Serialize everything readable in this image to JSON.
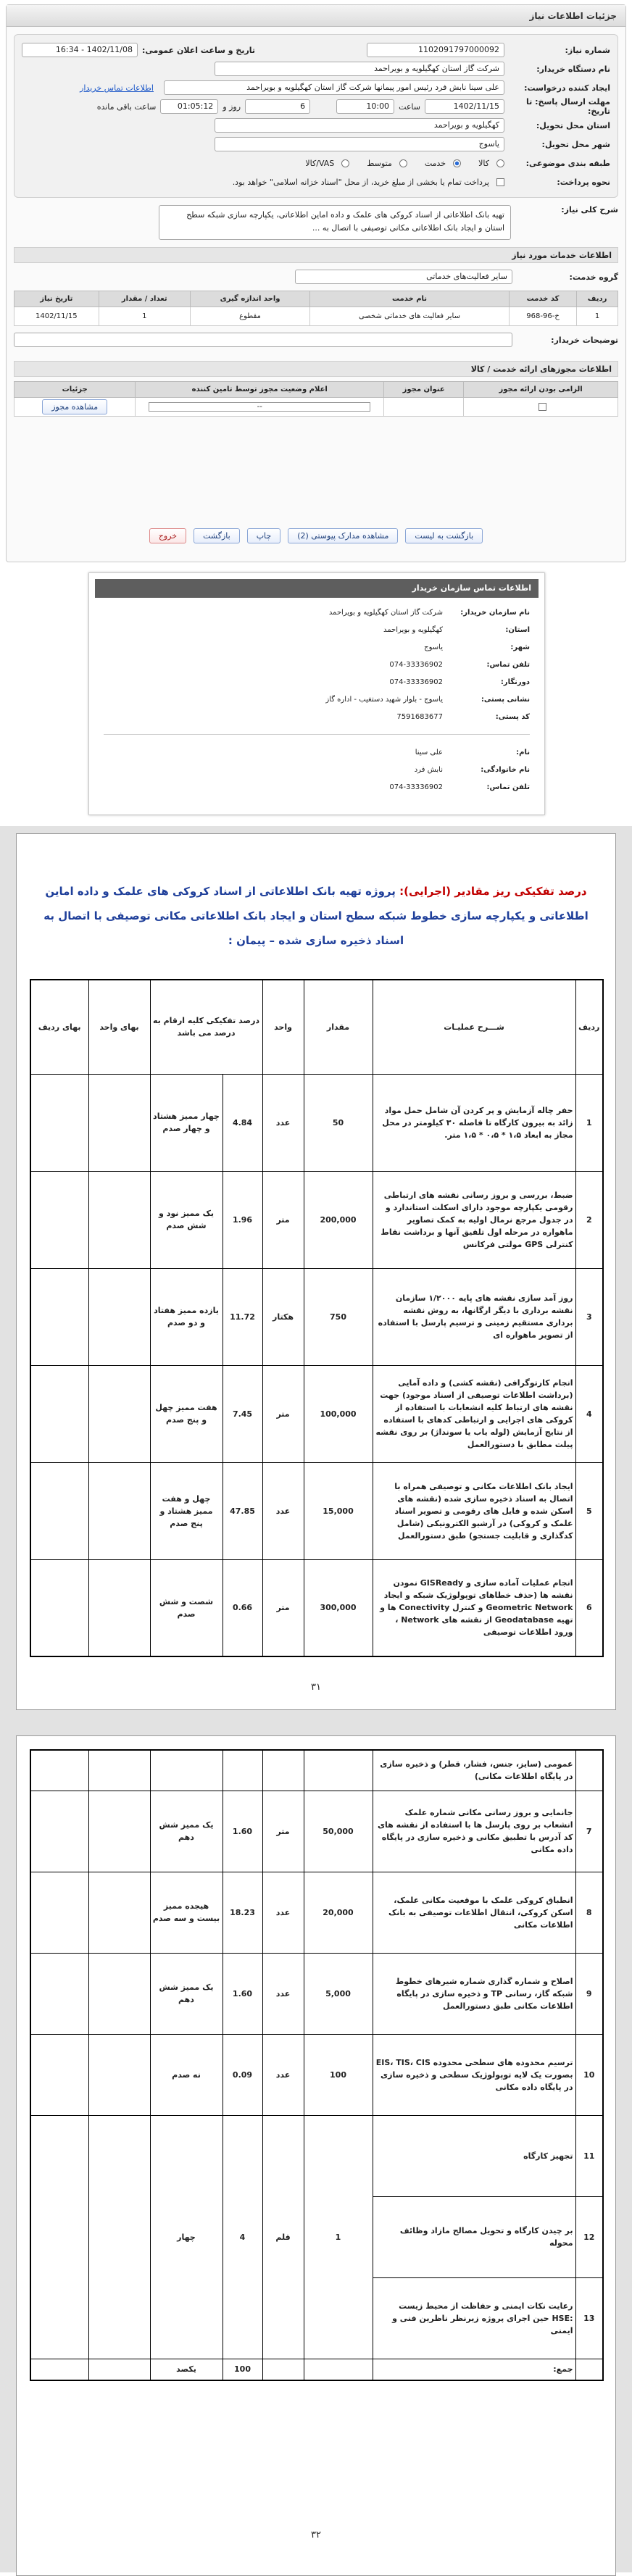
{
  "header": {
    "title": "جزئیات اطلاعات نیاز"
  },
  "form": {
    "need_number": {
      "label": "شماره نیاز:",
      "value": "1102091797000092"
    },
    "announce": {
      "label": "تاریخ و ساعت اعلان عمومی:",
      "value": "1402/11/08 - 16:34"
    },
    "buyer": {
      "label": "نام دستگاه خریدار:",
      "value": "شرکت گاز استان کهگیلویه و بویراحمد"
    },
    "creator": {
      "label": "ایجاد کننده درخواست:",
      "value": "علی سینا نابش فرد رئیس امور پیمانها شرکت گاز استان کهگیلویه و بویراحمد",
      "link": "اطلاعات تماس خریدار"
    },
    "deadline": {
      "label": "مهلت ارسال پاسخ: تا تاریخ:",
      "date": "1402/11/15",
      "time_label": "ساعت",
      "time": "10:00",
      "days": "6",
      "days_label": "روز و",
      "remaining": "01:05:12",
      "remaining_label": "ساعت باقی مانده"
    },
    "delivery": {
      "label": "استان محل تحویل:",
      "value": "کهگیلویه و بویراحمد"
    },
    "city": {
      "label": "شهر محل تحویل:",
      "value": "یاسوج"
    },
    "category": {
      "label": "طبقه بندی موضوعی:",
      "options": [
        "کالا",
        "خدمت",
        "متوسط",
        "VAS/کالا"
      ]
    },
    "payment": {
      "label": "نحوه پرداخت:",
      "text": "پرداخت تمام یا بخشی از مبلغ خرید، از محل \"اسناد خزانه اسلامی\" خواهد بود."
    }
  },
  "description": {
    "label": "شرح کلی نیاز:",
    "text": "تهیه بانک اطلاعاتی از اسناد کروکی های علمک و داده اماین اطلاعاتی، یکپارچه سازی شبکه سطح استان و ایجاد بانک اطلاعاتی مکانی توصیفی با اتصال به ..."
  },
  "services": {
    "title": "اطلاعات خدمات مورد نیاز",
    "group_label": "گروه خدمت:",
    "group": "سایر فعالیت‌های خدماتی",
    "columns": [
      "ردیف",
      "کد خدمت",
      "نام خدمت",
      "واحد اندازه گیری",
      "تعداد / مقدار",
      "تاریخ نیاز"
    ],
    "rows": [
      [
        "1",
        "خ-96-968",
        "سایر فعالیت های خدماتی شخصی",
        "مقطوع",
        "1",
        "1402/11/15"
      ]
    ],
    "notes_label": "توضیحات خریدار:"
  },
  "permits": {
    "title": "اطلاعات مجوزهای ارائه خدمت / کالا",
    "columns": [
      "الزامی بودن ارائه مجوز",
      "عنوان مجوز",
      "اعلام وضعیت مجوز توسط تامین کننده",
      "جزئیات"
    ],
    "select": "--",
    "button": "مشاهده مجوز"
  },
  "buttons": [
    "بازگشت به لیست",
    "مشاهده مدارک پیوستی (2)",
    "چاپ",
    "بازگشت",
    "خروج"
  ],
  "contact": {
    "title": "اطلاعات تماس سازمان خریدار",
    "fields": [
      {
        "label": "نام سازمان خریدار:",
        "value": "شرکت گاز استان کهگیلویه و بویراحمد"
      },
      {
        "label": "استان:",
        "value": "کهگیلویه و بویراحمد"
      },
      {
        "label": "شهر:",
        "value": "یاسوج"
      },
      {
        "label": "تلفن تماس:",
        "value": "074-33336902"
      },
      {
        "label": "دورنگار:",
        "value": "074-33336902"
      },
      {
        "label": "نشانی پستی:",
        "value": "یاسوج - بلوار شهید دستغیب - اداره گاز"
      },
      {
        "label": "کد پستی:",
        "value": "7591683677"
      }
    ],
    "creator": [
      {
        "label": "نام:",
        "value": "علی سینا"
      },
      {
        "label": "نام خانوادگی:",
        "value": "نابش فرد"
      },
      {
        "label": "تلفن تماس:",
        "value": "074-33336902"
      }
    ]
  },
  "doc": {
    "title_lead": "درصد تفکیکی ریز مقادیر (اجرایی):",
    "title": "پروژه تهیه بانک اطلاعاتی از اسناد کروکی های علمک و داده اماین اطلاعاتی و یکپارچه سازی خطوط شبکه سطح استان و ایجاد بانک اطلاعاتی مکانی توصیفی با اتصال به اسناد ذخیره سازی شده – پیمان :",
    "columns": [
      "ردیف",
      "شـــرح عملیـات",
      "مقدار",
      "واحد",
      "درصد تفکیکی کلیه ارقام به درصد می باشد",
      "بهای واحد",
      "بهای ردیف"
    ],
    "rows": [
      {
        "num": "1",
        "desc": "حفر چاله آزمایش و پر کردن آن شامل حمل مواد زائد به بیرون کارگاه تا فاصله ۳۰ کیلومتر در محل مجاز به ابعاد ۱،۵ * ۰،۵ * ۱،۵ متر.",
        "qty": "50",
        "unit": "عدد",
        "pct": "4.84",
        "pct_text": "چهار ممیز هشتاد و چهار صدم"
      },
      {
        "num": "2",
        "desc": "ضبط، بررسی و بروز رسانی نقشه های ارتباطی رقومی یکپارچه موجود دارای اسکلت استاندارد و در جدول مرجع نرمال اولیه به کمک تصاویر ماهواره در مرحله اول تلفیق آنها و برداشت نقاط کنترلی GPS مولتی فرکانس",
        "qty": "200,000",
        "unit": "متر",
        "pct": "1.96",
        "pct_text": "یک ممیز نود و شش صدم"
      },
      {
        "num": "3",
        "desc": "روز آمد سازی نقشه های پایه ۱/۲۰۰۰ سازمان نقشه برداری با دیگر ارگانها، به روش نقشه برداری مستقیم زمینی و ترسیم پارسل با استفاده از تصویر ماهواره ای",
        "qty": "750",
        "unit": "هکتار",
        "pct": "11.72",
        "pct_text": "یازده ممیز هفتاد و دو صدم"
      },
      {
        "num": "4",
        "desc": "انجام کارتوگرافی (نقشه کشی) و داده آمایی (برداشت اطلاعات توصیفی از اسناد موجود) جهت نقشه های ارتباط کلیه انشعابات با استفاده از کروکی های اجرایی و ارتباطی کدهای با استفاده از نتایج آزمایش (لوله یاب یا سونداژ) بر روی نقشه پیلت مطابق با دستورالعمل",
        "qty": "100,000",
        "unit": "متر",
        "pct": "7.45",
        "pct_text": "هفت ممیز چهل و پنج صدم"
      },
      {
        "num": "5",
        "desc": "ایجاد بانک اطلاعات مکانی و توصیفی همراه با اتصال به اسناد ذخیره سازی شده (نقشه های اسکن شده و فایل های رقومی و تصویر اسناد علمک و کروکی) در آرشیو الکترونیکی (شامل کدگذاری و قابلیت جستجو) طبق دستورالعمل",
        "qty": "15,000",
        "unit": "عدد",
        "pct": "47.85",
        "pct_text": "چهل و هفت ممیز هشتاد و پنج صدم"
      },
      {
        "num": "6",
        "desc": "انجام عملیات آماده سازی و GISReady نمودن نقشه ها (حذف خطاهای توپولوژیک شبکه و ایجاد Geometric Network و کنترل Conectivity ها و تهیه Geodatabase از نقشه های Network ، ورود اطلاعات توصیفی",
        "qty": "300,000",
        "unit": "متر",
        "pct": "0.66",
        "pct_text": "شصت و شش صدم"
      }
    ],
    "page1": "۳۱",
    "rows2": [
      {
        "desc": "عمومی (سایز، جنس، فشار، قطر) و ذخیره سازی در پایگاه اطلاعات مکانی)"
      },
      {
        "num": "7",
        "desc": "جانمایی و بروز رسانی مکانی شماره علمک انشعاب بر روی پارسل ها با استفاده از نقشه های کد آدرس با تطبیق مکانی و ذخیره سازی در پایگاه داده مکانی",
        "qty": "50,000",
        "unit": "متر",
        "pct": "1.60",
        "pct_text": "یک ممیز شش دهم"
      },
      {
        "num": "8",
        "desc": "انطباق کروکی علمک با موقعیت مکانی علمک، اسکن کروکی، انتقال اطلاعات توصیفی به بانک اطلاعات مکانی",
        "qty": "20,000",
        "unit": "عدد",
        "pct": "18.23",
        "pct_text": "هیجده ممیز بیست و سه صدم"
      },
      {
        "num": "9",
        "desc": "اصلاح و شماره گذاری شماره شیرهای خطوط شبکه گاز، رسانی TP و ذخیره سازی در پایگاه اطلاعات مکانی طبق دستورالعمل",
        "qty": "5,000",
        "unit": "عدد",
        "pct": "1.60",
        "pct_text": "یک ممیز شش دهم"
      },
      {
        "num": "10",
        "desc": "ترسیم محدوده های سطحی محدوده EIS، TIS، CIS بصورت یک لایه توپولوژیک سطحی و ذخیره سازی در پایگاه داده مکانی",
        "qty": "100",
        "unit": "عدد",
        "pct": "0.09",
        "pct_text": "نه صدم"
      },
      {
        "num": "11",
        "desc": "تجهیز کارگاه"
      },
      {
        "num": "12",
        "desc": "بر چیدن کارگاه و تحویل مصالح مازاد وظائف محوله"
      },
      {
        "num": "13",
        "desc": "رعایت نکات ایمنی و حفاظت از محیط زیست :HSE حین اجرای پروژه زیرنظر ناظرین فنی و ایمنی"
      }
    ],
    "shared": {
      "qty": "1",
      "unit": "قلم",
      "pct": "4",
      "pct_text": "چهار"
    },
    "total_label": "جمع:",
    "total": "100",
    "total_text": "یکصد",
    "page2": "۳۲"
  }
}
